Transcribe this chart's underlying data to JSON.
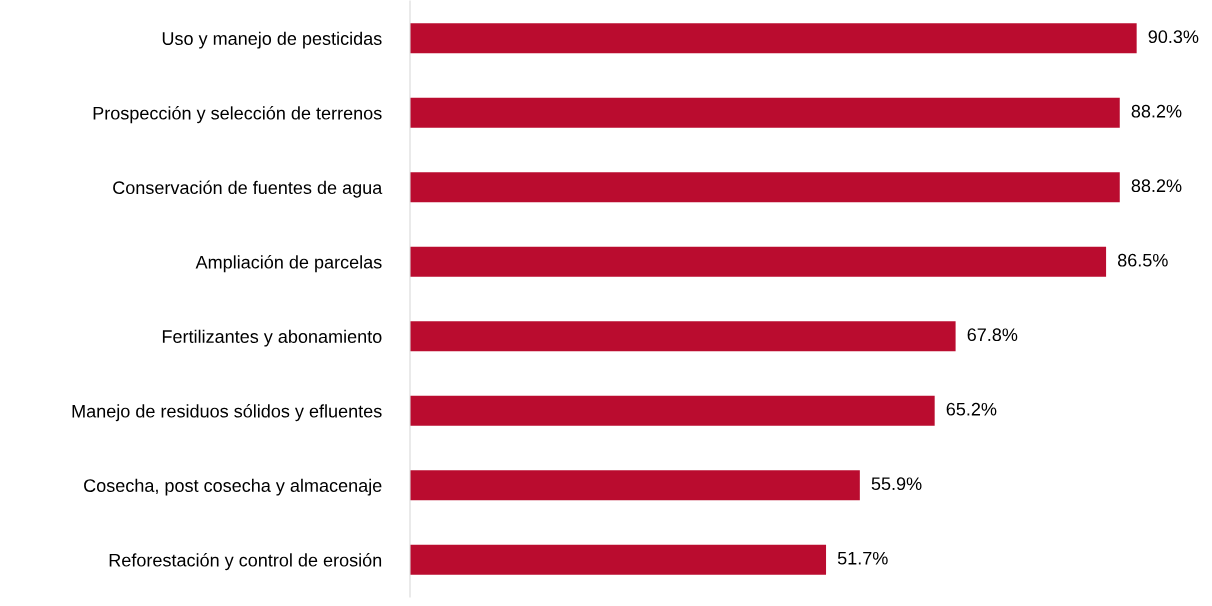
{
  "chart_data": {
    "type": "bar",
    "orientation": "horizontal",
    "categories": [
      "Uso y manejo de pesticidas",
      "Prospección y selección de terrenos",
      "Conservación de fuentes de agua",
      "Ampliación de parcelas",
      "Fertilizantes y abonamiento",
      "Manejo de residuos sólidos y efluentes",
      "Cosecha, post cosecha y almacenaje",
      "Reforestación y control de erosión"
    ],
    "values": [
      90.3,
      88.2,
      88.2,
      86.5,
      67.8,
      65.2,
      55.9,
      51.7
    ],
    "value_labels": [
      "90.3%",
      "88.2%",
      "88.2%",
      "86.5%",
      "67.8%",
      "65.2%",
      "55.9%",
      "51.7%"
    ],
    "color": "#ba0c2f",
    "grid": false,
    "legend": false
  }
}
